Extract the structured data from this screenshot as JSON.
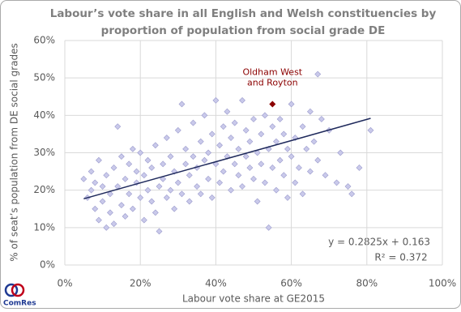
{
  "chart_data": {
    "type": "scatter",
    "title": [
      "Labour’s vote share in all English and Welsh constituencies by",
      "proportion of population from social grade DE"
    ],
    "xlabel": "Labour vote share at GE2015",
    "ylabel": "% of seat’s population from DE social grades",
    "xlim": [
      0,
      100
    ],
    "ylim": [
      0,
      60
    ],
    "xticks": [
      {
        "value": 0,
        "label": "0%"
      },
      {
        "value": 20,
        "label": "20%"
      },
      {
        "value": 40,
        "label": "40%"
      },
      {
        "value": 60,
        "label": "60%"
      },
      {
        "value": 80,
        "label": "80%"
      },
      {
        "value": 100,
        "label": "100%"
      }
    ],
    "yticks": [
      {
        "value": 0,
        "label": "0%"
      },
      {
        "value": 10,
        "label": "10%"
      },
      {
        "value": 20,
        "label": "20%"
      },
      {
        "value": 30,
        "label": "30%"
      },
      {
        "value": 40,
        "label": "40%"
      },
      {
        "value": 50,
        "label": "50%"
      },
      {
        "value": 60,
        "label": "60%"
      }
    ],
    "grid": true,
    "series": [
      {
        "color": "#c9c9ea",
        "x": [
          5,
          6,
          7,
          7,
          8,
          8,
          9,
          9,
          10,
          10,
          11,
          11,
          12,
          12,
          13,
          13,
          14,
          14,
          15,
          15,
          16,
          16,
          17,
          17,
          18,
          18,
          19,
          19,
          20,
          20,
          21,
          21,
          22,
          22,
          23,
          23,
          24,
          24,
          25,
          25,
          26,
          26,
          27,
          27,
          28,
          28,
          29,
          29,
          30,
          30,
          31,
          31,
          32,
          32,
          33,
          33,
          34,
          34,
          35,
          35,
          36,
          36,
          37,
          37,
          38,
          38,
          39,
          39,
          40,
          40,
          41,
          41,
          42,
          42,
          43,
          43,
          44,
          44,
          45,
          45,
          46,
          46,
          47,
          47,
          48,
          48,
          49,
          49,
          50,
          50,
          51,
          51,
          52,
          52,
          53,
          53,
          54,
          54,
          55,
          55,
          56,
          56,
          57,
          57,
          58,
          58,
          59,
          59,
          60,
          60,
          61,
          61,
          62,
          63,
          63,
          64,
          65,
          65,
          66,
          67,
          67,
          68,
          69,
          70,
          72,
          73,
          75,
          76,
          78,
          81
        ],
        "y": [
          23,
          18,
          25,
          20,
          15,
          22,
          12,
          28,
          17,
          21,
          10,
          24,
          14,
          19,
          26,
          11,
          37,
          21,
          16,
          29,
          23,
          13,
          27,
          19,
          31,
          15,
          22,
          25,
          18,
          30,
          24,
          12,
          28,
          20,
          17,
          26,
          14,
          32,
          21,
          9,
          27,
          23,
          34,
          18,
          20,
          29,
          25,
          15,
          22,
          36,
          43,
          19,
          27,
          31,
          24,
          17,
          29,
          38,
          21,
          26,
          33,
          19,
          28,
          40,
          23,
          30,
          35,
          18,
          27,
          44,
          32,
          22,
          37,
          25,
          29,
          41,
          20,
          34,
          27,
          38,
          31,
          24,
          44,
          21,
          29,
          36,
          33,
          26,
          39,
          23,
          30,
          17,
          35,
          27,
          40,
          22,
          31,
          10,
          37,
          26,
          33,
          20,
          39,
          28,
          24,
          35,
          31,
          18,
          29,
          43,
          34,
          22,
          26,
          37,
          19,
          31,
          41,
          25,
          33,
          51,
          28,
          39,
          24,
          36,
          22,
          30,
          21,
          19,
          26,
          36
        ]
      }
    ],
    "trendline": {
      "color": "#1f2a5c",
      "x": [
        5,
        81
      ],
      "y": [
        17.7,
        39.2
      ]
    },
    "equation": [
      "y = 0.2825x + 0.163",
      "R² = 0.372"
    ],
    "annotation": {
      "text": [
        "Oldham West",
        "and Royton"
      ],
      "x": 55,
      "y": 43,
      "color": "#8b0000"
    },
    "logo": "ComRes"
  }
}
